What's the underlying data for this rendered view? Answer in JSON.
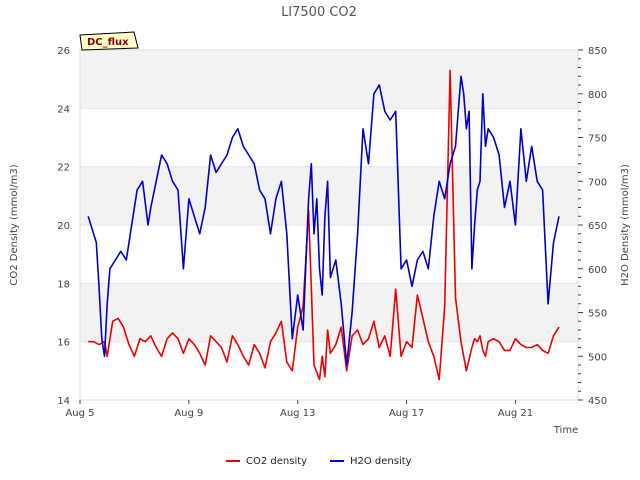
{
  "chart_data": {
    "type": "line",
    "title": "LI7500 CO2",
    "badge": "DC_flux",
    "xlabel": "Time",
    "ylabel_left": "CO2 Density (mmol/m3)",
    "ylabel_right": "H2O Density (mmol/m3)",
    "xlim": [
      5,
      23.3
    ],
    "ylim_left": [
      14,
      26
    ],
    "ylim_right": [
      450,
      850
    ],
    "x_ticks": [
      {
        "value": 5,
        "label": "Aug 5"
      },
      {
        "value": 9,
        "label": "Aug 9"
      },
      {
        "value": 13,
        "label": "Aug 13"
      },
      {
        "value": 17,
        "label": "Aug 17"
      },
      {
        "value": 21,
        "label": "Aug 21"
      }
    ],
    "y_ticks_left": [
      "14",
      "16",
      "18",
      "20",
      "22",
      "24",
      "26"
    ],
    "y_ticks_right": [
      "450",
      "500",
      "550",
      "600",
      "650",
      "700",
      "750",
      "800",
      "850"
    ],
    "bands_left": [
      [
        16,
        18
      ],
      [
        20,
        22
      ],
      [
        24,
        26
      ]
    ],
    "series": [
      {
        "name": "CO2 density",
        "axis": "left",
        "color": "#ee0000",
        "x": [
          5.3,
          5.5,
          5.7,
          5.9,
          6.0,
          6.2,
          6.4,
          6.6,
          6.8,
          7.0,
          7.2,
          7.4,
          7.6,
          7.8,
          8.0,
          8.2,
          8.4,
          8.6,
          8.8,
          9.0,
          9.2,
          9.4,
          9.6,
          9.8,
          10.0,
          10.2,
          10.4,
          10.6,
          10.8,
          11.0,
          11.2,
          11.4,
          11.6,
          11.8,
          12.0,
          12.2,
          12.4,
          12.6,
          12.8,
          13.0,
          13.2,
          13.4,
          13.6,
          13.8,
          13.9,
          14.0,
          14.1,
          14.2,
          14.4,
          14.6,
          14.8,
          15.0,
          15.2,
          15.4,
          15.6,
          15.8,
          16.0,
          16.2,
          16.4,
          16.6,
          16.8,
          17.0,
          17.2,
          17.4,
          17.6,
          17.8,
          18.0,
          18.2,
          18.4,
          18.6,
          18.8,
          19.0,
          19.2,
          19.4,
          19.5,
          19.6,
          19.7,
          19.8,
          19.9,
          20.0,
          20.2,
          20.4,
          20.6,
          20.8,
          21.0,
          21.2,
          21.4,
          21.6,
          21.8,
          22.0,
          22.2,
          22.4,
          22.6
        ],
        "values": [
          16.0,
          16.0,
          15.9,
          16.0,
          15.5,
          16.7,
          16.8,
          16.5,
          15.9,
          15.5,
          16.1,
          16.0,
          16.2,
          15.8,
          15.5,
          16.1,
          16.3,
          16.1,
          15.6,
          16.1,
          15.9,
          15.6,
          15.2,
          16.2,
          16.0,
          15.8,
          15.3,
          16.2,
          15.9,
          15.5,
          15.2,
          15.9,
          15.6,
          15.1,
          16.0,
          16.3,
          16.7,
          15.3,
          15.0,
          16.5,
          17.2,
          20.5,
          15.2,
          14.7,
          15.5,
          14.8,
          16.4,
          15.6,
          15.9,
          16.5,
          15.0,
          16.2,
          16.4,
          15.9,
          16.1,
          16.7,
          15.8,
          16.2,
          15.5,
          17.8,
          15.5,
          16.0,
          15.8,
          17.6,
          16.8,
          16.0,
          15.5,
          14.7,
          17.2,
          25.3,
          17.5,
          16.0,
          15.0,
          15.8,
          16.1,
          16.0,
          16.2,
          15.7,
          15.5,
          16.0,
          16.1,
          16.0,
          15.7,
          15.7,
          16.1,
          15.9,
          15.8,
          15.8,
          15.9,
          15.7,
          15.6,
          16.2,
          16.5
        ]
      },
      {
        "name": "H2O density",
        "axis": "right",
        "color": "#0000cc",
        "x": [
          5.3,
          5.4,
          5.5,
          5.6,
          5.7,
          5.8,
          5.9,
          6.0,
          6.1,
          6.3,
          6.5,
          6.7,
          6.9,
          7.1,
          7.3,
          7.5,
          7.6,
          7.8,
          8.0,
          8.2,
          8.4,
          8.6,
          8.8,
          9.0,
          9.2,
          9.4,
          9.6,
          9.8,
          10.0,
          10.2,
          10.4,
          10.6,
          10.8,
          11.0,
          11.2,
          11.4,
          11.6,
          11.8,
          12.0,
          12.2,
          12.4,
          12.6,
          12.8,
          13.0,
          13.2,
          13.4,
          13.5,
          13.6,
          13.7,
          13.8,
          13.9,
          14.0,
          14.1,
          14.2,
          14.4,
          14.6,
          14.8,
          15.0,
          15.2,
          15.4,
          15.6,
          15.8,
          16.0,
          16.2,
          16.4,
          16.6,
          16.8,
          17.0,
          17.2,
          17.4,
          17.6,
          17.8,
          18.0,
          18.2,
          18.4,
          18.6,
          18.8,
          19.0,
          19.1,
          19.2,
          19.3,
          19.4,
          19.5,
          19.6,
          19.7,
          19.8,
          19.9,
          20.0,
          20.2,
          20.4,
          20.6,
          20.8,
          21.0,
          21.2,
          21.4,
          21.6,
          21.8,
          22.0,
          22.2,
          22.4,
          22.6
        ],
        "values": [
          660,
          650,
          640,
          630,
          580,
          520,
          500,
          560,
          600,
          610,
          620,
          610,
          650,
          690,
          700,
          650,
          670,
          700,
          730,
          720,
          700,
          690,
          600,
          680,
          660,
          640,
          670,
          730,
          710,
          720,
          730,
          750,
          760,
          740,
          730,
          720,
          690,
          680,
          640,
          680,
          700,
          640,
          520,
          570,
          530,
          680,
          720,
          640,
          680,
          600,
          570,
          660,
          700,
          590,
          610,
          560,
          490,
          550,
          640,
          760,
          720,
          800,
          810,
          780,
          770,
          780,
          600,
          610,
          580,
          610,
          620,
          600,
          660,
          700,
          680,
          720,
          740,
          820,
          800,
          760,
          780,
          600,
          650,
          690,
          700,
          800,
          740,
          760,
          750,
          730,
          670,
          700,
          650,
          760,
          700,
          740,
          700,
          690,
          560,
          630,
          660
        ]
      }
    ]
  }
}
